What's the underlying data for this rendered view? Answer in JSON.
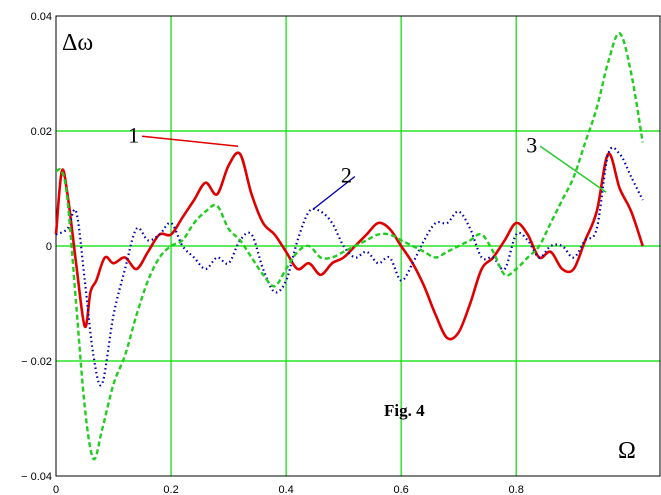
{
  "chart_data": {
    "type": "line",
    "xlabel": "Ω",
    "ylabel": "Δω",
    "xlim": [
      0,
      1.05
    ],
    "ylim": [
      -0.04,
      0.04
    ],
    "xticks": [
      0,
      0.2,
      0.4,
      0.6,
      0.8
    ],
    "xtick_labels": [
      "0",
      "0.2",
      "0.4",
      "0.6",
      "0.8"
    ],
    "yticks": [
      -0.04,
      -0.02,
      0,
      0.02,
      0.04
    ],
    "ytick_labels": [
      "− 0.04",
      "− 0.02",
      "0",
      "0.02",
      "0.04"
    ],
    "grid": true,
    "grid_color": "#00dd00",
    "annotation": "Fig. 4",
    "series": [
      {
        "name": "1",
        "color": "#e00000",
        "style": "solid",
        "label_at": [
          0.32,
          0.017
        ],
        "x": [
          0,
          0.01,
          0.02,
          0.035,
          0.05,
          0.06,
          0.07,
          0.085,
          0.1,
          0.12,
          0.14,
          0.16,
          0.18,
          0.2,
          0.22,
          0.24,
          0.26,
          0.28,
          0.3,
          0.32,
          0.34,
          0.36,
          0.38,
          0.4,
          0.42,
          0.44,
          0.46,
          0.48,
          0.5,
          0.52,
          0.54,
          0.56,
          0.58,
          0.6,
          0.62,
          0.64,
          0.66,
          0.68,
          0.7,
          0.72,
          0.74,
          0.76,
          0.78,
          0.8,
          0.82,
          0.84,
          0.86,
          0.88,
          0.9,
          0.92,
          0.94,
          0.96,
          0.98,
          1.0,
          1.02
        ],
        "y": [
          0.002,
          0.013,
          0.009,
          -0.003,
          -0.014,
          -0.008,
          -0.006,
          -0.002,
          -0.003,
          -0.002,
          -0.004,
          -0.001,
          0.002,
          0.002,
          0.005,
          0.008,
          0.011,
          0.009,
          0.014,
          0.016,
          0.009,
          0.004,
          0.002,
          -0.001,
          -0.004,
          -0.003,
          -0.005,
          -0.003,
          -0.002,
          0.0,
          0.002,
          0.004,
          0.003,
          0.0,
          -0.003,
          -0.007,
          -0.012,
          -0.016,
          -0.015,
          -0.01,
          -0.004,
          -0.002,
          0.001,
          0.004,
          0.002,
          -0.002,
          -0.001,
          -0.004,
          -0.004,
          0.001,
          0.006,
          0.016,
          0.01,
          0.006,
          0.0
        ]
      },
      {
        "name": "2",
        "color": "#0000b0",
        "style": "dotted",
        "label_at": [
          0.45,
          0.006
        ],
        "x": [
          0,
          0.02,
          0.035,
          0.05,
          0.065,
          0.08,
          0.1,
          0.12,
          0.14,
          0.16,
          0.18,
          0.2,
          0.22,
          0.24,
          0.26,
          0.28,
          0.3,
          0.32,
          0.34,
          0.36,
          0.38,
          0.4,
          0.42,
          0.44,
          0.46,
          0.48,
          0.5,
          0.52,
          0.54,
          0.56,
          0.58,
          0.6,
          0.62,
          0.64,
          0.66,
          0.68,
          0.7,
          0.72,
          0.74,
          0.76,
          0.78,
          0.8,
          0.82,
          0.84,
          0.86,
          0.88,
          0.9,
          0.92,
          0.94,
          0.96,
          0.98,
          1.0,
          1.02
        ],
        "y": [
          0.002,
          0.003,
          0.006,
          -0.006,
          -0.019,
          -0.024,
          -0.012,
          -0.004,
          0.003,
          0.001,
          0.002,
          0.004,
          0.0,
          -0.002,
          -0.004,
          -0.002,
          -0.003,
          0.001,
          0.002,
          -0.004,
          -0.008,
          -0.006,
          0.001,
          0.006,
          0.006,
          0.004,
          0.0,
          -0.002,
          -0.001,
          -0.003,
          -0.002,
          -0.006,
          -0.003,
          0.001,
          0.004,
          0.004,
          0.006,
          0.003,
          -0.002,
          -0.002,
          -0.004,
          0.002,
          0.001,
          -0.002,
          0.0,
          0.0,
          -0.002,
          0.001,
          0.003,
          0.016,
          0.016,
          0.012,
          0.008
        ]
      },
      {
        "name": "3",
        "color": "#22cc22",
        "style": "dashed",
        "label_at": [
          0.96,
          0.009
        ],
        "x": [
          0,
          0.01,
          0.02,
          0.035,
          0.05,
          0.065,
          0.08,
          0.1,
          0.12,
          0.14,
          0.16,
          0.18,
          0.2,
          0.22,
          0.24,
          0.26,
          0.28,
          0.3,
          0.32,
          0.34,
          0.36,
          0.38,
          0.4,
          0.42,
          0.44,
          0.46,
          0.48,
          0.5,
          0.52,
          0.54,
          0.56,
          0.58,
          0.6,
          0.62,
          0.64,
          0.66,
          0.68,
          0.7,
          0.72,
          0.74,
          0.76,
          0.78,
          0.8,
          0.82,
          0.84,
          0.86,
          0.88,
          0.9,
          0.92,
          0.94,
          0.96,
          0.98,
          1.0,
          1.02
        ],
        "y": [
          0.013,
          0.013,
          0.008,
          -0.01,
          -0.028,
          -0.037,
          -0.032,
          -0.024,
          -0.019,
          -0.012,
          -0.006,
          -0.002,
          0.0,
          0.001,
          0.004,
          0.006,
          0.007,
          0.003,
          0.001,
          -0.002,
          -0.005,
          -0.007,
          -0.004,
          -0.001,
          0.0,
          -0.002,
          -0.002,
          -0.001,
          0.0,
          0.001,
          0.002,
          0.002,
          0.001,
          0.0,
          -0.001,
          -0.002,
          -0.001,
          0.0,
          0.001,
          0.002,
          -0.001,
          -0.005,
          -0.004,
          -0.002,
          0.0,
          0.004,
          0.008,
          0.012,
          0.018,
          0.024,
          0.032,
          0.037,
          0.03,
          0.018
        ]
      }
    ]
  }
}
